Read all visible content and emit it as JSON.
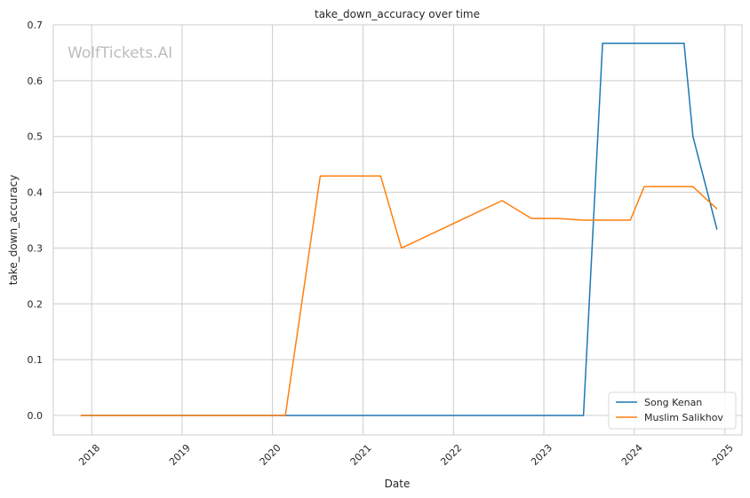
{
  "watermark": "WolfTickets.AI",
  "chart_data": {
    "type": "line",
    "title": "take_down_accuracy over time",
    "xlabel": "Date",
    "ylabel": "take_down_accuracy",
    "x_axis_type": "date",
    "xlim": [
      "2017-07-30",
      "2025-03-11"
    ],
    "ylim": [
      -0.035,
      0.7
    ],
    "x_ticks": [
      "2018",
      "2019",
      "2020",
      "2021",
      "2022",
      "2023",
      "2024",
      "2025"
    ],
    "y_ticks": [
      "0.0",
      "0.1",
      "0.2",
      "0.3",
      "0.4",
      "0.5",
      "0.6",
      "0.7"
    ],
    "grid": true,
    "legend_position": "bottom-right",
    "series": [
      {
        "name": "Song Kenan",
        "color": "#1f77b4",
        "points": [
          {
            "x": "2017-11-18",
            "y": 0.0
          },
          {
            "x": "2023-06-10",
            "y": 0.0
          },
          {
            "x": "2023-08-26",
            "y": 0.667
          },
          {
            "x": "2024-07-20",
            "y": 0.667
          },
          {
            "x": "2024-08-25",
            "y": 0.5
          },
          {
            "x": "2024-11-30",
            "y": 0.333
          }
        ]
      },
      {
        "name": "Muslim Salikhov",
        "color": "#ff7f0e",
        "points": [
          {
            "x": "2017-11-18",
            "y": 0.0
          },
          {
            "x": "2020-02-22",
            "y": 0.0
          },
          {
            "x": "2020-07-12",
            "y": 0.429
          },
          {
            "x": "2021-03-13",
            "y": 0.429
          },
          {
            "x": "2021-06-05",
            "y": 0.3
          },
          {
            "x": "2022-07-16",
            "y": 0.385
          },
          {
            "x": "2022-11-12",
            "y": 0.353
          },
          {
            "x": "2023-02-25",
            "y": 0.353
          },
          {
            "x": "2023-06-10",
            "y": 0.35
          },
          {
            "x": "2023-12-16",
            "y": 0.35
          },
          {
            "x": "2024-02-10",
            "y": 0.41
          },
          {
            "x": "2024-08-25",
            "y": 0.41
          },
          {
            "x": "2024-11-30",
            "y": 0.37
          }
        ]
      }
    ]
  }
}
